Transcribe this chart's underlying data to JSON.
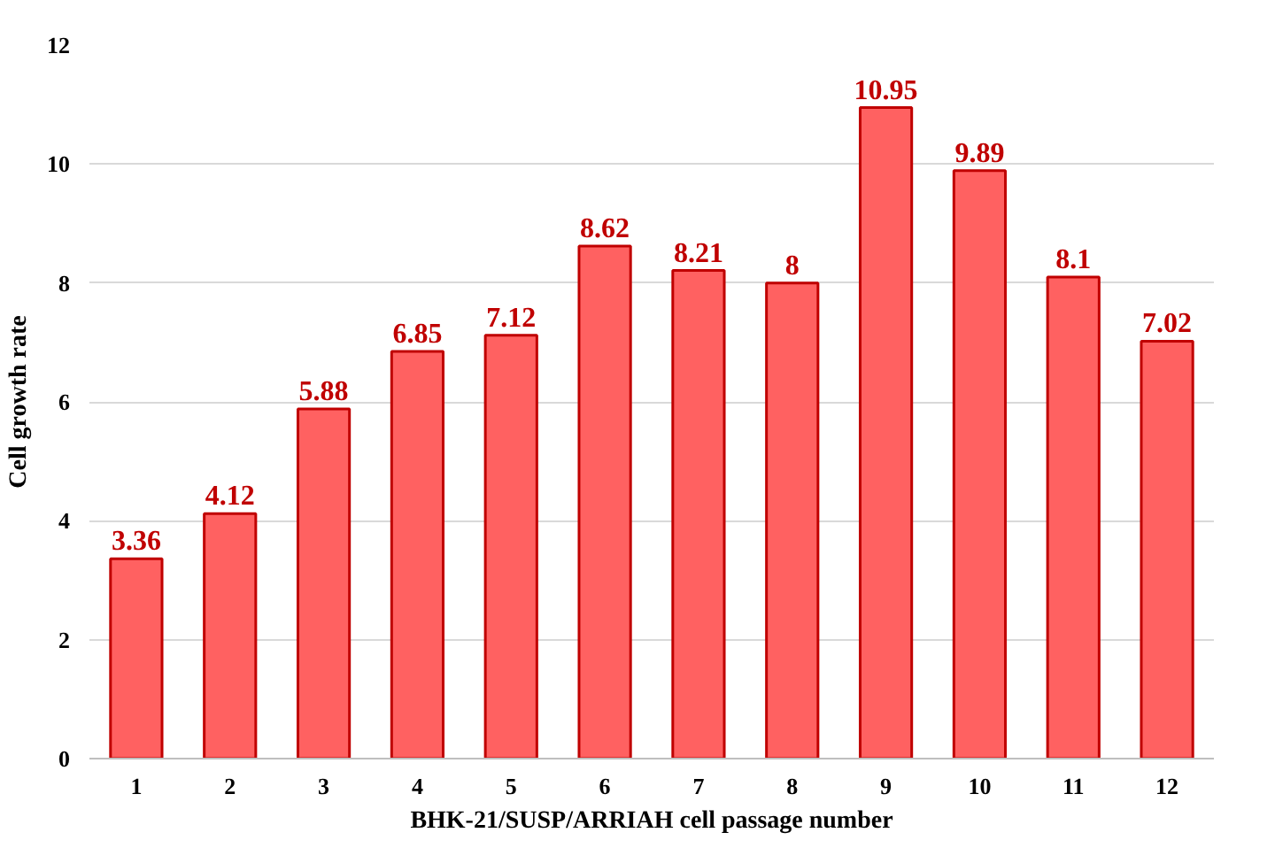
{
  "chart_data": {
    "type": "bar",
    "xlabel": "BHK-21/SUSP/ARRIAH cell passage number",
    "ylabel": "Cell growth rate",
    "x": [
      1,
      2,
      3,
      4,
      5,
      6,
      7,
      8,
      9,
      10,
      11,
      12
    ],
    "values": [
      3.36,
      4.12,
      5.88,
      6.85,
      7.12,
      8.62,
      8.21,
      8,
      10.95,
      9.89,
      8.1,
      7.02
    ],
    "color": "#ff6161",
    "xlim": [
      0.5,
      12.5
    ],
    "xticks": [
      1,
      2,
      3,
      4,
      5,
      6,
      7,
      8,
      9,
      10,
      11,
      12
    ],
    "ylim": [
      0,
      12
    ],
    "yticks": [
      0,
      2,
      4,
      6,
      8,
      10,
      12
    ],
    "grid": "y",
    "data_labels": true
  }
}
